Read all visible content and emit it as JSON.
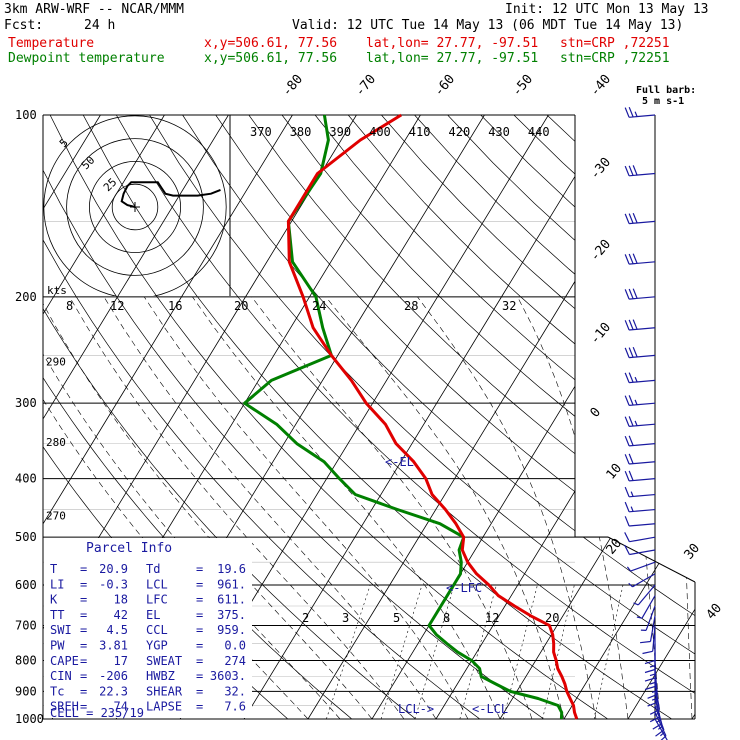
{
  "header": {
    "model": "3km ARW-WRF -- NCAR/MMM",
    "init": "Init: 12 UTC Mon 13 May 13",
    "fcst_label": "Fcst:",
    "fcst_value": "24 h",
    "valid": "Valid: 12 UTC Tue 14 May 13 (06 MDT Tue 14 May 13)",
    "temp_line": {
      "label": "Temperature",
      "xy": "x,y=506.61, 77.56",
      "latlon": "lat,lon= 27.77, -97.51",
      "stn": "stn=CRP ,72251"
    },
    "dew_line": {
      "label": "Dewpoint temperature",
      "xy": "x,y=506.61, 77.56",
      "latlon": "lat,lon= 27.77, -97.51",
      "stn": "stn=CRP ,72251"
    }
  },
  "barb_legend": {
    "line1": "Full barb:",
    "line2": "5 m s-1"
  },
  "hodograph": {
    "units": "kts",
    "ring_labels": [
      "5",
      "50",
      "25"
    ],
    "trace": [
      [
        0,
        0
      ],
      [
        -4,
        1
      ],
      [
        -7,
        3
      ],
      [
        -6,
        7
      ],
      [
        -4,
        11
      ],
      [
        -2,
        13
      ],
      [
        4,
        13
      ],
      [
        12,
        13
      ],
      [
        14,
        10
      ],
      [
        16,
        7
      ],
      [
        20,
        6
      ],
      [
        26,
        6
      ],
      [
        33,
        6
      ],
      [
        40,
        7
      ],
      [
        45,
        9
      ]
    ]
  },
  "colors": {
    "temperature": "#e00000",
    "dewpoint": "#008000",
    "barb": "#1a1aa0",
    "grid": "#000000"
  },
  "chart_data": {
    "type": "skew-T log-P sounding",
    "pressure_labels": [
      1000,
      900,
      800,
      700,
      600,
      500,
      400,
      300,
      200,
      100
    ],
    "pressure_range": [
      1000,
      100
    ],
    "isotherm_labels_left": [
      -80,
      -70,
      -60,
      -50,
      -40
    ],
    "isotherm_labels_right": [
      -30,
      -20,
      -10,
      0,
      10,
      20,
      30,
      40
    ],
    "theta_labels": [
      370,
      380,
      390,
      400,
      410,
      420,
      430,
      440
    ],
    "theta_e_labels": [
      {
        "value": 290,
        "p": 250
      },
      {
        "value": 280,
        "p": 340
      },
      {
        "value": 270,
        "p": 450
      }
    ],
    "mixing_ratio_labels": [
      2,
      3,
      5,
      8,
      12,
      20
    ],
    "mixing_ratio_top_labels": [
      8,
      12,
      16,
      20,
      24,
      28,
      32
    ],
    "temperature": [
      [
        1000,
        22
      ],
      [
        975,
        21
      ],
      [
        950,
        20.2
      ],
      [
        925,
        19
      ],
      [
        900,
        17.8
      ],
      [
        875,
        16.8
      ],
      [
        850,
        15.6
      ],
      [
        825,
        14.2
      ],
      [
        800,
        13.2
      ],
      [
        775,
        12
      ],
      [
        750,
        11.2
      ],
      [
        725,
        10.2
      ],
      [
        700,
        8.8
      ],
      [
        675,
        5
      ],
      [
        650,
        1.5
      ],
      [
        625,
        -2
      ],
      [
        600,
        -4.5
      ],
      [
        575,
        -7.5
      ],
      [
        550,
        -10
      ],
      [
        525,
        -12
      ],
      [
        500,
        -13
      ],
      [
        475,
        -15.5
      ],
      [
        450,
        -18.5
      ],
      [
        425,
        -22
      ],
      [
        400,
        -24.5
      ],
      [
        375,
        -28
      ],
      [
        350,
        -32.5
      ],
      [
        325,
        -36
      ],
      [
        300,
        -41
      ],
      [
        275,
        -45.5
      ],
      [
        250,
        -51
      ],
      [
        225,
        -56.5
      ],
      [
        200,
        -61
      ],
      [
        175,
        -66.5
      ],
      [
        150,
        -70.5
      ],
      [
        125,
        -70.5
      ],
      [
        110,
        -67
      ],
      [
        100,
        -63
      ]
    ],
    "dewpoint": [
      [
        1000,
        19.6
      ],
      [
        975,
        19
      ],
      [
        950,
        17.8
      ],
      [
        925,
        14
      ],
      [
        900,
        9
      ],
      [
        875,
        6
      ],
      [
        850,
        3
      ],
      [
        825,
        2
      ],
      [
        800,
        0
      ],
      [
        775,
        -3
      ],
      [
        750,
        -5.5
      ],
      [
        725,
        -8
      ],
      [
        700,
        -10
      ],
      [
        675,
        -10
      ],
      [
        650,
        -10
      ],
      [
        625,
        -10
      ],
      [
        600,
        -10
      ],
      [
        575,
        -10
      ],
      [
        550,
        -11
      ],
      [
        525,
        -12.5
      ],
      [
        500,
        -13
      ],
      [
        475,
        -18
      ],
      [
        450,
        -26
      ],
      [
        425,
        -34
      ],
      [
        400,
        -38
      ],
      [
        375,
        -42
      ],
      [
        350,
        -48
      ],
      [
        325,
        -53
      ],
      [
        300,
        -60
      ],
      [
        275,
        -58
      ],
      [
        250,
        -51
      ],
      [
        225,
        -55
      ],
      [
        200,
        -59
      ],
      [
        175,
        -66
      ],
      [
        150,
        -70.5
      ],
      [
        125,
        -70
      ],
      [
        110,
        -72
      ],
      [
        100,
        -75
      ]
    ],
    "level_markers": [
      {
        "label": "<-EL",
        "p": 375
      },
      {
        "label": "<-LFC",
        "p": 611
      },
      {
        "label": "LCL->",
        "p": 959
      },
      {
        "label": "<-LCL",
        "p": 961
      }
    ],
    "winds": [
      [
        1000,
        150,
        12
      ],
      [
        975,
        155,
        14
      ],
      [
        950,
        160,
        15
      ],
      [
        925,
        165,
        16
      ],
      [
        900,
        170,
        17
      ],
      [
        875,
        170,
        17
      ],
      [
        850,
        175,
        17
      ],
      [
        825,
        175,
        16
      ],
      [
        800,
        180,
        15
      ],
      [
        775,
        180,
        14
      ],
      [
        750,
        180,
        13
      ],
      [
        725,
        180,
        12
      ],
      [
        700,
        185,
        10
      ],
      [
        675,
        190,
        8
      ],
      [
        650,
        200,
        7
      ],
      [
        625,
        210,
        6
      ],
      [
        600,
        220,
        5
      ],
      [
        575,
        240,
        5
      ],
      [
        550,
        250,
        6
      ],
      [
        525,
        260,
        8
      ],
      [
        500,
        260,
        10
      ],
      [
        475,
        265,
        12
      ],
      [
        450,
        265,
        14
      ],
      [
        425,
        265,
        16
      ],
      [
        400,
        265,
        18
      ],
      [
        375,
        265,
        20
      ],
      [
        350,
        265,
        22
      ],
      [
        325,
        265,
        24
      ],
      [
        300,
        265,
        25
      ],
      [
        275,
        265,
        27
      ],
      [
        250,
        265,
        28
      ],
      [
        225,
        265,
        30
      ],
      [
        200,
        265,
        32
      ],
      [
        175,
        265,
        32
      ],
      [
        150,
        265,
        30
      ],
      [
        125,
        265,
        28
      ],
      [
        100,
        265,
        25
      ]
    ],
    "parcel_info": {
      "title": "Parcel Info",
      "rows": [
        [
          "T",
          "=",
          "20.9",
          "Td",
          "=",
          "19.6"
        ],
        [
          "LI",
          "=",
          "-0.3",
          "LCL",
          "=",
          "961."
        ],
        [
          "K",
          "=",
          "18",
          "LFC",
          "=",
          "611."
        ],
        [
          "TT",
          "=",
          "42",
          "EL",
          "=",
          "375."
        ],
        [
          "SWI",
          "=",
          "4.5",
          "CCL",
          "=",
          "959."
        ],
        [
          "PW",
          "=",
          "3.81",
          "YGP",
          "=",
          "0.0"
        ],
        [
          "CAPE",
          "=",
          "17",
          "SWEAT",
          "=",
          "274"
        ],
        [
          "CIN",
          "=",
          "-206",
          "HWBZ",
          "=",
          "3603."
        ],
        [
          "Tc",
          "=",
          "22.3",
          "SHEAR",
          "=",
          "32."
        ],
        [
          "SREH",
          "=",
          "74",
          "LAPSE",
          "=",
          "7.6"
        ]
      ],
      "cell": "CELL = 235/19"
    }
  }
}
